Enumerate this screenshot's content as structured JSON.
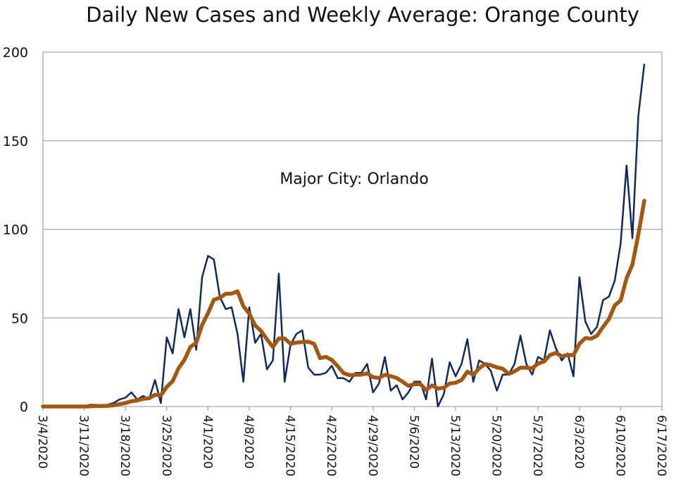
{
  "chart_data": {
    "type": "line",
    "title": "Daily New Cases and Weekly Average: Orange County",
    "annotation": "Major City: Orlando",
    "xlabel": "",
    "ylabel": "",
    "ylim": [
      0,
      200
    ],
    "yticks": [
      "0",
      "50",
      "100",
      "150",
      "200"
    ],
    "xlim": [
      "3/4/2020",
      "6/17/2020"
    ],
    "xticks": [
      "3/4/2020",
      "3/11/2020",
      "3/18/2020",
      "3/25/2020",
      "4/1/2020",
      "4/8/2020",
      "4/15/2020",
      "4/22/2020",
      "4/29/2020",
      "5/6/2020",
      "5/13/2020",
      "5/20/2020",
      "5/27/2020",
      "6/3/2020",
      "6/10/2020",
      "6/17/2020"
    ],
    "grid": "horizontal",
    "legend": "none",
    "x": [
      "3/4",
      "3/5",
      "3/6",
      "3/7",
      "3/8",
      "3/9",
      "3/10",
      "3/11",
      "3/12",
      "3/13",
      "3/14",
      "3/15",
      "3/16",
      "3/17",
      "3/18",
      "3/19",
      "3/20",
      "3/21",
      "3/22",
      "3/23",
      "3/24",
      "3/25",
      "3/26",
      "3/27",
      "3/28",
      "3/29",
      "3/30",
      "3/31",
      "4/1",
      "4/2",
      "4/3",
      "4/4",
      "4/5",
      "4/6",
      "4/7",
      "4/8",
      "4/9",
      "4/10",
      "4/11",
      "4/12",
      "4/13",
      "4/14",
      "4/15",
      "4/16",
      "4/17",
      "4/18",
      "4/19",
      "4/20",
      "4/21",
      "4/22",
      "4/23",
      "4/24",
      "4/25",
      "4/26",
      "4/27",
      "4/28",
      "4/29",
      "4/30",
      "5/1",
      "5/2",
      "5/3",
      "5/4",
      "5/5",
      "5/6",
      "5/7",
      "5/8",
      "5/9",
      "5/10",
      "5/11",
      "5/12",
      "5/13",
      "5/14",
      "5/15",
      "5/16",
      "5/17",
      "5/18",
      "5/19",
      "5/20",
      "5/21",
      "5/22",
      "5/23",
      "5/24",
      "5/25",
      "5/26",
      "5/27",
      "5/28",
      "5/29",
      "5/30",
      "5/31",
      "6/1",
      "6/2",
      "6/3",
      "6/4",
      "6/5",
      "6/6",
      "6/7",
      "6/8",
      "6/9",
      "6/10",
      "6/11",
      "6/12",
      "6/13",
      "6/14"
    ],
    "series": [
      {
        "color": "#0f2a5f",
        "values": [
          0,
          0,
          0,
          0,
          0,
          0,
          0,
          0,
          1,
          1,
          0,
          1,
          2,
          4,
          5,
          8,
          4,
          6,
          4,
          15,
          2,
          39,
          30,
          55,
          39,
          55,
          32,
          73,
          85,
          83,
          62,
          55,
          56,
          41,
          14,
          56,
          36,
          41,
          21,
          26,
          75,
          14,
          35,
          41,
          43,
          22,
          18,
          18,
          19,
          23,
          16,
          16,
          14,
          19,
          19,
          24,
          8,
          13,
          28,
          9,
          12,
          4,
          8,
          14,
          14,
          4,
          27,
          0,
          7,
          25,
          17,
          24,
          38,
          14,
          26,
          24,
          20,
          9,
          18,
          18,
          24,
          40,
          24,
          18,
          28,
          26,
          43,
          33,
          26,
          30,
          17,
          73,
          48,
          41,
          45,
          60,
          62,
          71,
          92,
          136,
          95,
          164,
          193
        ]
      },
      {
        "color": "#a5560f",
        "values": [
          0,
          0,
          0,
          0,
          0,
          0,
          0,
          0,
          0.1,
          0.3,
          0.3,
          0.4,
          0.7,
          1.3,
          2.0,
          3.0,
          3.4,
          4.3,
          4.7,
          6.6,
          6.3,
          11.1,
          14.3,
          21.6,
          26.3,
          33.6,
          36.0,
          46.1,
          52.7,
          60.3,
          61.3,
          63.6,
          63.7,
          65.0,
          56.6,
          52.4,
          45.7,
          42.7,
          37.9,
          33.6,
          38.4,
          38.4,
          35.4,
          36.1,
          36.4,
          36.6,
          35.4,
          27.3,
          28.0,
          26.3,
          22.7,
          18.9,
          17.7,
          17.9,
          18.0,
          18.7,
          16.6,
          16.1,
          17.9,
          17.1,
          16.1,
          14.0,
          11.7,
          12.6,
          12.7,
          9.3,
          11.9,
          10.1,
          10.6,
          13.0,
          13.4,
          14.9,
          19.7,
          17.9,
          21.6,
          24.0,
          23.3,
          22.1,
          21.3,
          18.4,
          19.9,
          21.9,
          21.9,
          21.6,
          24.3,
          25.4,
          29.0,
          30.3,
          28.3,
          29.1,
          29.0,
          35.4,
          38.6,
          38.3,
          40.0,
          44.9,
          49.4,
          57.1,
          59.9,
          72.4,
          80.1,
          97.1,
          116.1
        ]
      }
    ]
  }
}
